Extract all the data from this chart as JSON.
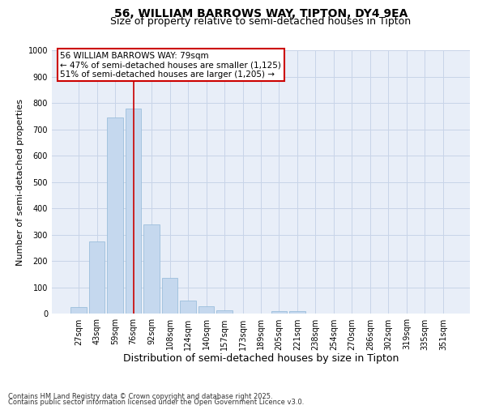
{
  "title_line1": "56, WILLIAM BARROWS WAY, TIPTON, DY4 9EA",
  "title_line2": "Size of property relative to semi-detached houses in Tipton",
  "xlabel": "Distribution of semi-detached houses by size in Tipton",
  "ylabel": "Number of semi-detached properties",
  "categories": [
    "27sqm",
    "43sqm",
    "59sqm",
    "76sqm",
    "92sqm",
    "108sqm",
    "124sqm",
    "140sqm",
    "157sqm",
    "173sqm",
    "189sqm",
    "205sqm",
    "221sqm",
    "238sqm",
    "254sqm",
    "270sqm",
    "286sqm",
    "302sqm",
    "319sqm",
    "335sqm",
    "351sqm"
  ],
  "values": [
    25,
    275,
    745,
    780,
    340,
    135,
    50,
    28,
    12,
    0,
    0,
    10,
    10,
    0,
    0,
    0,
    0,
    0,
    0,
    0,
    0
  ],
  "bar_color": "#c5d8ee",
  "bar_edgecolor": "#90b8d8",
  "vline_index": 3,
  "vline_color": "#cc0000",
  "ylim": [
    0,
    1000
  ],
  "yticks": [
    0,
    100,
    200,
    300,
    400,
    500,
    600,
    700,
    800,
    900,
    1000
  ],
  "grid_color": "#c8d4e8",
  "bg_color": "#e8eef8",
  "annotation_line1": "56 WILLIAM BARROWS WAY: 79sqm",
  "annotation_line2": "← 47% of semi-detached houses are smaller (1,125)",
  "annotation_line3": "51% of semi-detached houses are larger (1,205) →",
  "annotation_box_color": "#cc0000",
  "footer_line1": "Contains HM Land Registry data © Crown copyright and database right 2025.",
  "footer_line2": "Contains public sector information licensed under the Open Government Licence v3.0.",
  "title_fontsize": 10,
  "subtitle_fontsize": 9,
  "xlabel_fontsize": 9,
  "ylabel_fontsize": 8,
  "tick_fontsize": 7,
  "annotation_fontsize": 7.5,
  "footer_fontsize": 6
}
